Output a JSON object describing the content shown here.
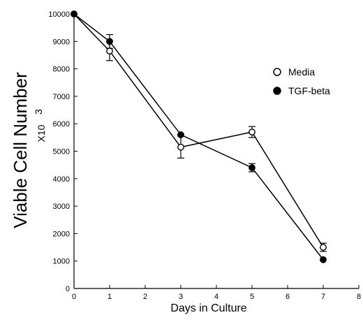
{
  "chart_data": {
    "type": "line",
    "xlabel": "Days in Culture",
    "ylabel": "Viable Cell Number",
    "ylabel_multiplier": "X10",
    "ylabel_exponent": "3",
    "xlim": [
      0,
      8
    ],
    "ylim": [
      0,
      10000
    ],
    "xticks": [
      "0",
      "1",
      "2",
      "3",
      "4",
      "5",
      "6",
      "7",
      "8"
    ],
    "yticks": [
      "0",
      "1000",
      "2000",
      "3000",
      "4000",
      "5000",
      "6000",
      "7000",
      "8000",
      "9000",
      "10000"
    ],
    "legend_position": "right",
    "series": [
      {
        "name": "Media",
        "marker": "open-circle",
        "x": [
          0,
          1,
          3,
          5,
          7
        ],
        "y": [
          10000,
          8650,
          5150,
          5700,
          1500
        ],
        "error": [
          0,
          350,
          400,
          200,
          150
        ]
      },
      {
        "name": "TGF-beta",
        "marker": "filled-circle",
        "x": [
          0,
          1,
          3,
          5,
          7
        ],
        "y": [
          10000,
          9000,
          5600,
          4400,
          1050
        ],
        "error": [
          0,
          250,
          0,
          150,
          0
        ]
      }
    ]
  }
}
